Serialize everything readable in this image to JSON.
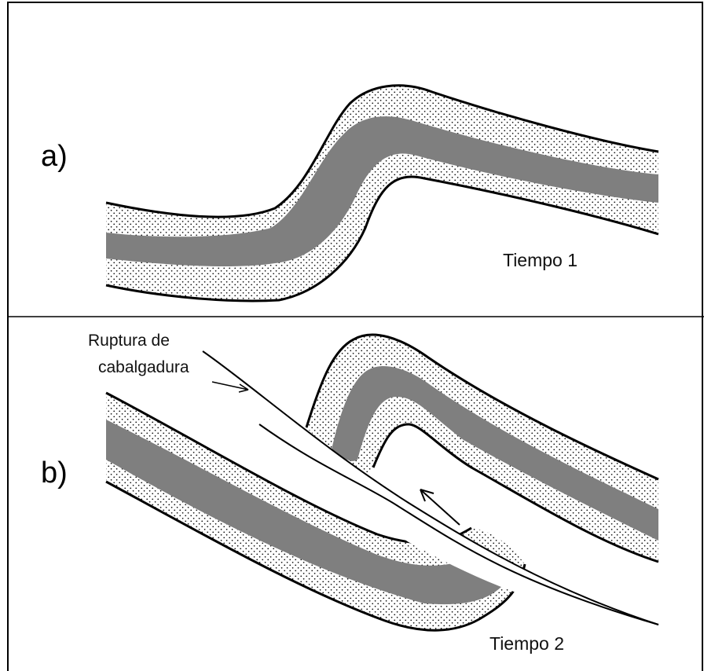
{
  "panels": {
    "a": {
      "label": "a)",
      "caption": "Tiempo 1"
    },
    "b": {
      "label": "b)",
      "caption": "Tiempo 2",
      "fault_label_line1": "Ruptura de",
      "fault_label_line2": "cabalgadura"
    }
  },
  "colors": {
    "sandstone_fill": "#ffffff",
    "stipple": "#000000",
    "gray_band": "#7f7f7f",
    "line": "#000000"
  }
}
